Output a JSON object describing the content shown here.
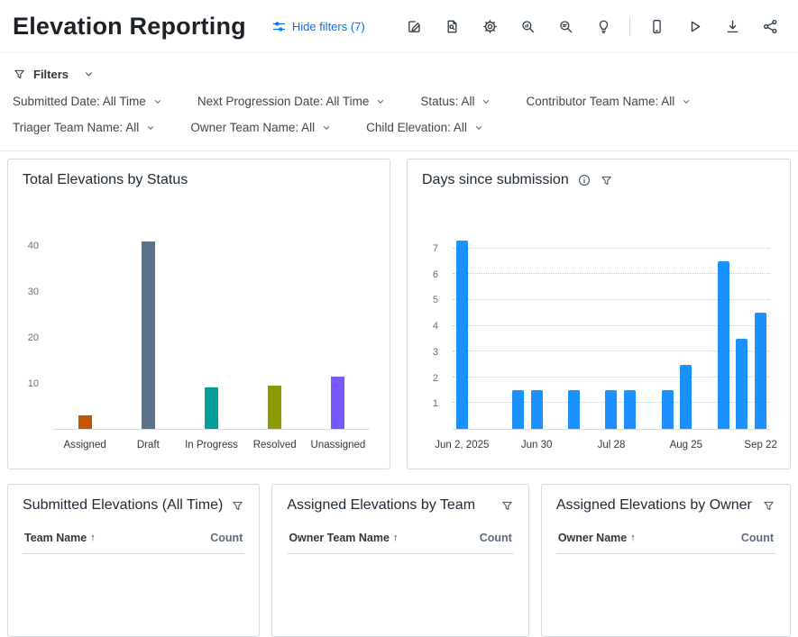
{
  "header": {
    "title": "Elevation Reporting",
    "hide_filters_label": "Hide filters (7)",
    "toolbar_icons": [
      "edit",
      "page-search",
      "settings",
      "search-insight",
      "search-data",
      "lightbulb",
      "mobile",
      "play",
      "download",
      "share"
    ]
  },
  "colors": {
    "link_blue": "#0070f2",
    "toolbar_icon": "#2e3c49",
    "days_bar_blue": "#1b90ff"
  },
  "icons": {
    "sort_asc": "↑"
  },
  "filters": {
    "toggle_label": "Filters",
    "rows": [
      [
        "Submitted Date: All Time",
        "Next Progression Date: All Time",
        "Status: All",
        "Contributor Team Name: All"
      ],
      [
        "Triager Team Name: All",
        "Owner Team Name: All",
        "Child Elevation: All"
      ]
    ]
  },
  "cards": {
    "status": {
      "title": "Total Elevations by Status"
    },
    "days": {
      "title": "Days since submission"
    },
    "submitted": {
      "title": "Submitted Elevations (All Time)",
      "columns": [
        "Team Name",
        "Count"
      ]
    },
    "by_team": {
      "title": "Assigned Elevations by Team",
      "columns": [
        "Owner Team Name",
        "Count"
      ]
    },
    "by_owner": {
      "title": "Assigned Elevations by Owner",
      "columns": [
        "Owner Name",
        "Count"
      ]
    }
  },
  "chart_data": [
    {
      "type": "bar",
      "title": "Total Elevations by Status",
      "categories": [
        "Assigned",
        "Draft",
        "In Progress",
        "Resolved",
        "Unassigned"
      ],
      "values": [
        3,
        41,
        9,
        9.5,
        11.5
      ],
      "colors": [
        "#c35500",
        "#5b738b",
        "#049f9a",
        "#8b9a00",
        "#7858ff"
      ],
      "xlabel": "",
      "ylabel": "",
      "ylim": [
        0,
        44
      ],
      "yticks": [
        10,
        20,
        30,
        40
      ],
      "grid": false,
      "legend": "none"
    },
    {
      "type": "bar",
      "title": "Days since submission",
      "bar_color": "#1b90ff",
      "n_slots": 17,
      "bars": [
        {
          "slot": 0,
          "value": 7.3
        },
        {
          "slot": 3,
          "value": 1.5
        },
        {
          "slot": 4,
          "value": 1.5
        },
        {
          "slot": 6,
          "value": 1.5
        },
        {
          "slot": 8,
          "value": 1.5
        },
        {
          "slot": 9,
          "value": 1.5
        },
        {
          "slot": 11,
          "value": 1.5
        },
        {
          "slot": 12,
          "value": 2.5
        },
        {
          "slot": 14,
          "value": 6.5
        },
        {
          "slot": 15,
          "value": 3.5
        },
        {
          "slot": 16,
          "value": 4.5
        }
      ],
      "x_tick_labels": [
        "Jun 2, 2025",
        "Jun 30",
        "Jul 28",
        "Aug 25",
        "Sep 22"
      ],
      "x_tick_slots": [
        0,
        4,
        8,
        12,
        16
      ],
      "xlabel": "",
      "ylabel": "",
      "ylim": [
        0,
        7.8
      ],
      "yticks": [
        1,
        2,
        3,
        4,
        5,
        6,
        7
      ],
      "grid": true,
      "legend": "none"
    }
  ]
}
